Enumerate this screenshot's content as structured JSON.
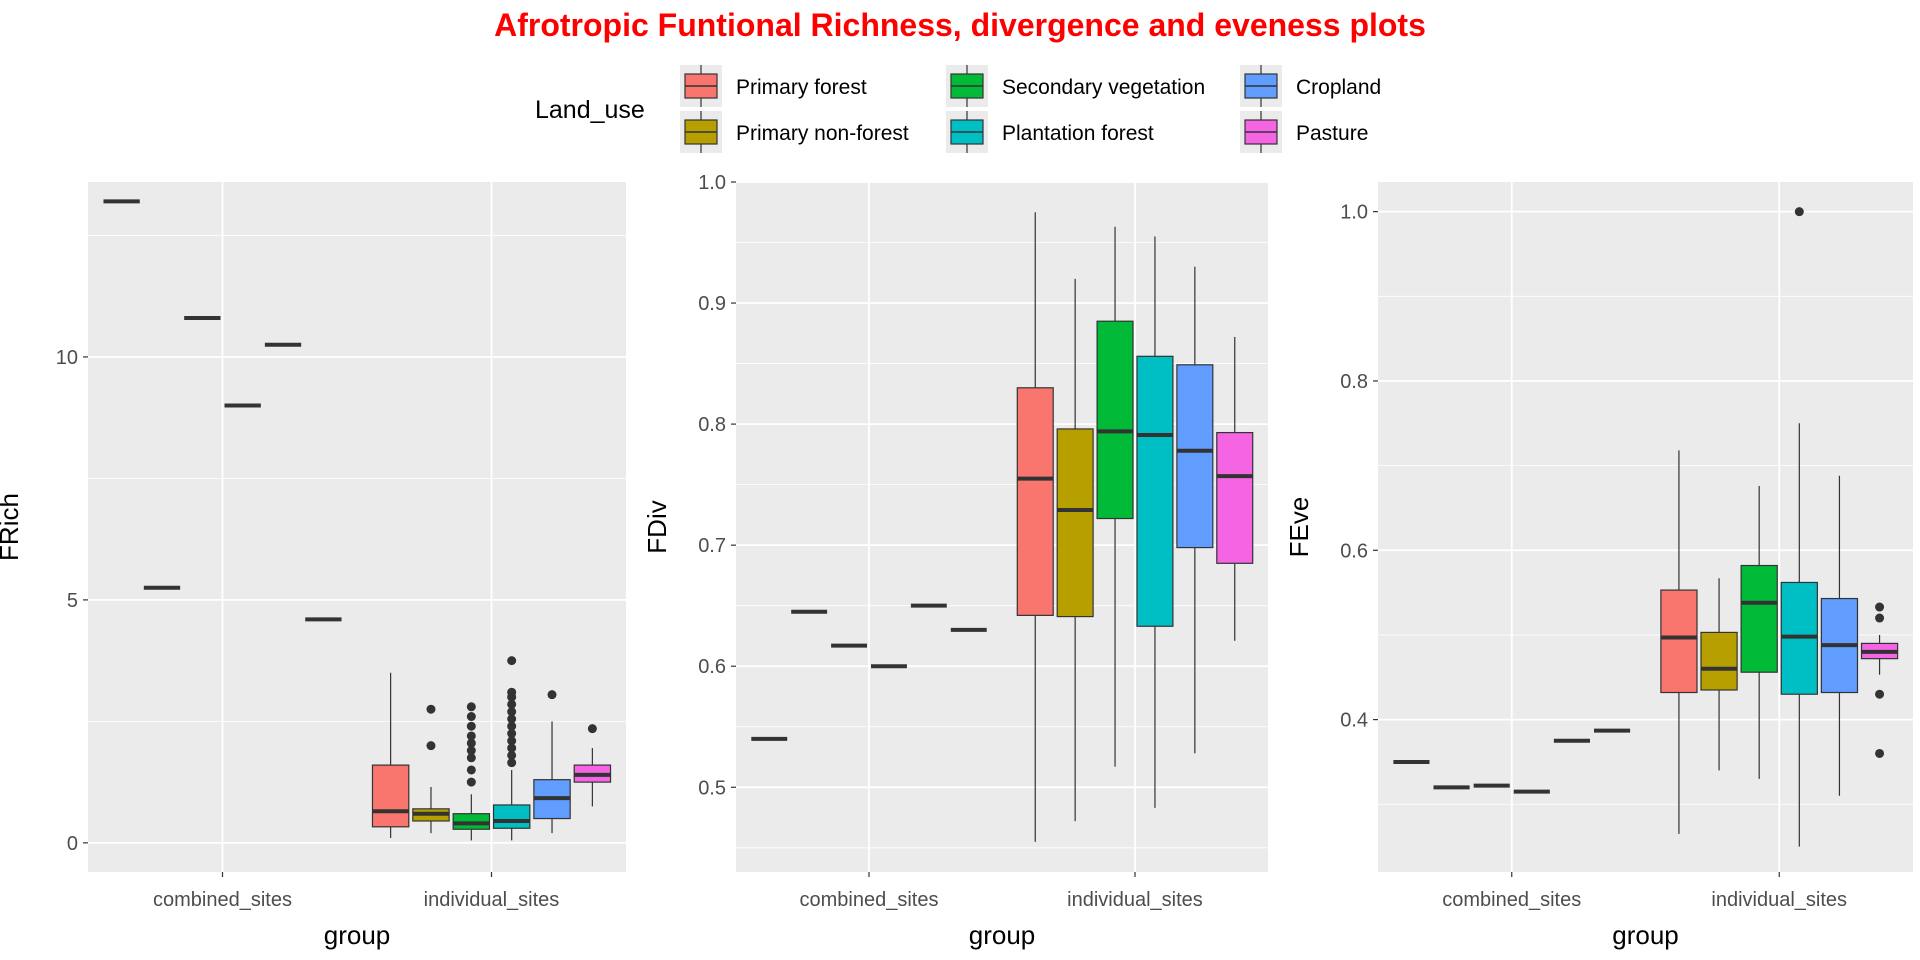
{
  "title": "Afrotropic Funtional Richness, divergence and eveness plots",
  "title_color": "#FF0000",
  "legend": {
    "title": "Land_use",
    "items": [
      {
        "label": "Primary forest",
        "color": "#F8766D"
      },
      {
        "label": "Primary non-forest",
        "color": "#B79F00"
      },
      {
        "label": "Secondary vegetation",
        "color": "#00BA38"
      },
      {
        "label": "Plantation forest",
        "color": "#00BFC4"
      },
      {
        "label": "Cropland",
        "color": "#619CFF"
      },
      {
        "label": "Pasture",
        "color": "#F564E3"
      }
    ]
  },
  "chart_data": [
    {
      "type": "box",
      "ylabel": "FRich",
      "xlabel": "group",
      "categories": [
        "combined_sites",
        "individual_sites"
      ],
      "ylim": [
        -0.6,
        13.6
      ],
      "yticks": [
        0,
        5,
        10
      ],
      "ytick_labels": [
        "0",
        "5",
        "10"
      ],
      "grid": true,
      "groups": [
        {
          "category": "combined_sites",
          "boxes": [
            {
              "series": "Primary forest",
              "q1": 13.2,
              "median": 13.2,
              "q3": 13.2,
              "lower": 13.2,
              "upper": 13.2,
              "outliers": []
            },
            {
              "series": "Primary non-forest",
              "q1": 5.25,
              "median": 5.25,
              "q3": 5.25,
              "lower": 5.25,
              "upper": 5.25,
              "outliers": []
            },
            {
              "series": "Secondary vegetation",
              "q1": 10.8,
              "median": 10.8,
              "q3": 10.8,
              "lower": 10.8,
              "upper": 10.8,
              "outliers": []
            },
            {
              "series": "Plantation forest",
              "q1": 9.0,
              "median": 9.0,
              "q3": 9.0,
              "lower": 9.0,
              "upper": 9.0,
              "outliers": []
            },
            {
              "series": "Cropland",
              "q1": 10.25,
              "median": 10.25,
              "q3": 10.25,
              "lower": 10.25,
              "upper": 10.25,
              "outliers": []
            },
            {
              "series": "Pasture",
              "q1": 4.6,
              "median": 4.6,
              "q3": 4.6,
              "lower": 4.6,
              "upper": 4.6,
              "outliers": []
            }
          ]
        },
        {
          "category": "individual_sites",
          "boxes": [
            {
              "series": "Primary forest",
              "q1": 0.33,
              "median": 0.65,
              "q3": 1.6,
              "lower": 0.1,
              "upper": 3.5,
              "outliers": []
            },
            {
              "series": "Primary non-forest",
              "q1": 0.45,
              "median": 0.6,
              "q3": 0.7,
              "lower": 0.2,
              "upper": 1.15,
              "outliers": [
                2.0,
                2.75
              ]
            },
            {
              "series": "Secondary vegetation",
              "q1": 0.28,
              "median": 0.4,
              "q3": 0.6,
              "lower": 0.05,
              "upper": 1.0,
              "outliers": [
                1.25,
                1.5,
                1.75,
                1.9,
                2.05,
                2.2,
                2.4,
                2.6,
                2.8
              ]
            },
            {
              "series": "Plantation forest",
              "q1": 0.3,
              "median": 0.45,
              "q3": 0.78,
              "lower": 0.05,
              "upper": 1.5,
              "outliers": [
                1.65,
                1.8,
                1.95,
                2.1,
                2.25,
                2.4,
                2.55,
                2.7,
                2.85,
                3.0,
                3.1,
                3.75
              ]
            },
            {
              "series": "Cropland",
              "q1": 0.5,
              "median": 0.92,
              "q3": 1.3,
              "lower": 0.2,
              "upper": 2.5,
              "outliers": [
                3.05
              ]
            },
            {
              "series": "Pasture",
              "q1": 1.25,
              "median": 1.4,
              "q3": 1.6,
              "lower": 0.75,
              "upper": 1.95,
              "outliers": [
                2.35
              ]
            }
          ]
        }
      ]
    },
    {
      "type": "box",
      "ylabel": "FDiv",
      "xlabel": "group",
      "categories": [
        "combined_sites",
        "individual_sites"
      ],
      "ylim": [
        0.43,
        1.0
      ],
      "yticks": [
        0.5,
        0.6,
        0.7,
        0.8,
        0.9,
        1.0
      ],
      "ytick_labels": [
        "0.5",
        "0.6",
        "0.7",
        "0.8",
        "0.9",
        "1.0"
      ],
      "grid": true,
      "groups": [
        {
          "category": "combined_sites",
          "boxes": [
            {
              "series": "Primary forest",
              "q1": 0.54,
              "median": 0.54,
              "q3": 0.54,
              "lower": 0.54,
              "upper": 0.54,
              "outliers": []
            },
            {
              "series": "Primary non-forest",
              "q1": 0.645,
              "median": 0.645,
              "q3": 0.645,
              "lower": 0.645,
              "upper": 0.645,
              "outliers": []
            },
            {
              "series": "Secondary vegetation",
              "q1": 0.617,
              "median": 0.617,
              "q3": 0.617,
              "lower": 0.617,
              "upper": 0.617,
              "outliers": []
            },
            {
              "series": "Plantation forest",
              "q1": 0.6,
              "median": 0.6,
              "q3": 0.6,
              "lower": 0.6,
              "upper": 0.6,
              "outliers": []
            },
            {
              "series": "Cropland",
              "q1": 0.65,
              "median": 0.65,
              "q3": 0.65,
              "lower": 0.65,
              "upper": 0.65,
              "outliers": []
            },
            {
              "series": "Pasture",
              "q1": 0.63,
              "median": 0.63,
              "q3": 0.63,
              "lower": 0.63,
              "upper": 0.63,
              "outliers": []
            }
          ]
        },
        {
          "category": "individual_sites",
          "boxes": [
            {
              "series": "Primary forest",
              "q1": 0.642,
              "median": 0.755,
              "q3": 0.83,
              "lower": 0.455,
              "upper": 0.975,
              "outliers": []
            },
            {
              "series": "Primary non-forest",
              "q1": 0.641,
              "median": 0.729,
              "q3": 0.796,
              "lower": 0.472,
              "upper": 0.92,
              "outliers": []
            },
            {
              "series": "Secondary vegetation",
              "q1": 0.722,
              "median": 0.794,
              "q3": 0.885,
              "lower": 0.517,
              "upper": 0.963,
              "outliers": []
            },
            {
              "series": "Plantation forest",
              "q1": 0.633,
              "median": 0.791,
              "q3": 0.856,
              "lower": 0.483,
              "upper": 0.955,
              "outliers": []
            },
            {
              "series": "Cropland",
              "q1": 0.698,
              "median": 0.778,
              "q3": 0.849,
              "lower": 0.528,
              "upper": 0.93,
              "outliers": []
            },
            {
              "series": "Pasture",
              "q1": 0.685,
              "median": 0.757,
              "q3": 0.793,
              "lower": 0.621,
              "upper": 0.872,
              "outliers": []
            }
          ]
        }
      ]
    },
    {
      "type": "box",
      "ylabel": "FEve",
      "xlabel": "group",
      "categories": [
        "combined_sites",
        "individual_sites"
      ],
      "ylim": [
        0.22,
        1.035
      ],
      "yticks": [
        0.4,
        0.6,
        0.8,
        1.0
      ],
      "ytick_labels": [
        "0.4",
        "0.6",
        "0.8",
        "1.0"
      ],
      "grid": true,
      "groups": [
        {
          "category": "combined_sites",
          "boxes": [
            {
              "series": "Primary forest",
              "q1": 0.35,
              "median": 0.35,
              "q3": 0.35,
              "lower": 0.35,
              "upper": 0.35,
              "outliers": []
            },
            {
              "series": "Primary non-forest",
              "q1": 0.32,
              "median": 0.32,
              "q3": 0.32,
              "lower": 0.32,
              "upper": 0.32,
              "outliers": []
            },
            {
              "series": "Secondary vegetation",
              "q1": 0.322,
              "median": 0.322,
              "q3": 0.322,
              "lower": 0.322,
              "upper": 0.322,
              "outliers": []
            },
            {
              "series": "Plantation forest",
              "q1": 0.315,
              "median": 0.315,
              "q3": 0.315,
              "lower": 0.315,
              "upper": 0.315,
              "outliers": []
            },
            {
              "series": "Cropland",
              "q1": 0.375,
              "median": 0.375,
              "q3": 0.375,
              "lower": 0.375,
              "upper": 0.375,
              "outliers": []
            },
            {
              "series": "Pasture",
              "q1": 0.387,
              "median": 0.387,
              "q3": 0.387,
              "lower": 0.387,
              "upper": 0.387,
              "outliers": []
            }
          ]
        },
        {
          "category": "individual_sites",
          "boxes": [
            {
              "series": "Primary forest",
              "q1": 0.432,
              "median": 0.497,
              "q3": 0.553,
              "lower": 0.265,
              "upper": 0.718,
              "outliers": []
            },
            {
              "series": "Primary non-forest",
              "q1": 0.435,
              "median": 0.46,
              "q3": 0.503,
              "lower": 0.34,
              "upper": 0.567,
              "outliers": []
            },
            {
              "series": "Secondary vegetation",
              "q1": 0.456,
              "median": 0.538,
              "q3": 0.582,
              "lower": 0.33,
              "upper": 0.676,
              "outliers": []
            },
            {
              "series": "Plantation forest",
              "q1": 0.43,
              "median": 0.498,
              "q3": 0.562,
              "lower": 0.25,
              "upper": 0.75,
              "outliers": [
                1.0
              ]
            },
            {
              "series": "Cropland",
              "q1": 0.432,
              "median": 0.488,
              "q3": 0.543,
              "lower": 0.31,
              "upper": 0.688,
              "outliers": []
            },
            {
              "series": "Pasture",
              "q1": 0.472,
              "median": 0.48,
              "q3": 0.49,
              "lower": 0.453,
              "upper": 0.5,
              "outliers": [
                0.36,
                0.43,
                0.52,
                0.533
              ]
            }
          ]
        }
      ]
    }
  ]
}
